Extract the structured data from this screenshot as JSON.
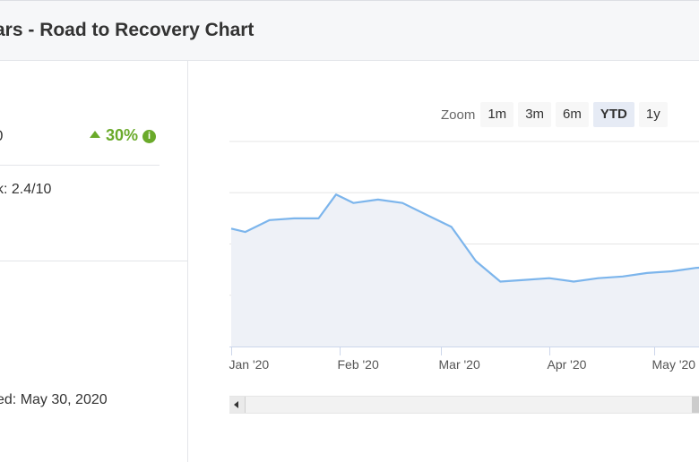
{
  "header": {
    "title": "ars - Road to Recovery Chart"
  },
  "summary": {
    "value_fragment": "0",
    "change": "30%",
    "info_glyph": "i",
    "risk_text": "k: 2.4/10",
    "updated_text": "ed: May 30, 2020"
  },
  "zoom": {
    "label": "Zoom",
    "buttons": [
      {
        "label": "1m",
        "active": false
      },
      {
        "label": "3m",
        "active": false
      },
      {
        "label": "6m",
        "active": false
      },
      {
        "label": "YTD",
        "active": true
      },
      {
        "label": "1y",
        "active": false
      }
    ]
  },
  "chart_data": {
    "type": "area",
    "x_tick_labels": [
      "Jan '20",
      "Feb '20",
      "Mar '20",
      "Apr '20",
      "May '20"
    ],
    "x": [
      "2020-01-01",
      "2020-01-05",
      "2020-01-12",
      "2020-01-19",
      "2020-01-26",
      "2020-01-31",
      "2020-02-05",
      "2020-02-12",
      "2020-02-19",
      "2020-02-26",
      "2020-03-04",
      "2020-03-11",
      "2020-03-18",
      "2020-03-25",
      "2020-04-01",
      "2020-04-08",
      "2020-04-15",
      "2020-04-22",
      "2020-04-29",
      "2020-05-06",
      "2020-05-13",
      "2020-05-20"
    ],
    "y": [
      69,
      67,
      74,
      75,
      75,
      89,
      84,
      86,
      84,
      77,
      70,
      50,
      38,
      39,
      40,
      38,
      40,
      41,
      43,
      44,
      46,
      47
    ],
    "ylim": [
      0,
      120
    ],
    "grid": true,
    "line_color": "#7cb5ec",
    "fill_color": "#eef1f7"
  }
}
